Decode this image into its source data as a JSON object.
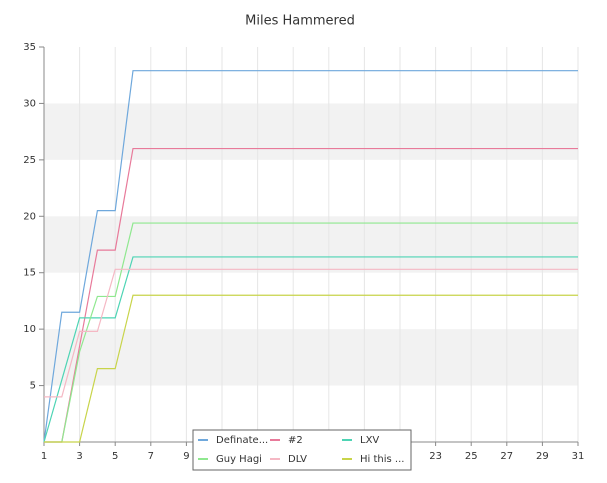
{
  "chart_data": {
    "type": "line",
    "title": "Miles Hammered",
    "x": [
      1,
      2,
      3,
      4,
      5,
      6,
      7,
      8,
      9,
      10,
      11,
      12,
      13,
      14,
      15,
      16,
      17,
      18,
      19,
      20,
      21,
      22,
      23,
      24,
      25,
      26,
      27,
      28,
      29,
      30,
      31
    ],
    "series": [
      {
        "name": "Definate...",
        "color": "#6fa8dc",
        "values": [
          0,
          11.5,
          11.5,
          20.5,
          20.5,
          32.9,
          32.9,
          32.9,
          32.9,
          32.9,
          32.9,
          32.9,
          32.9,
          32.9,
          32.9,
          32.9,
          32.9,
          32.9,
          32.9,
          32.9,
          32.9,
          32.9,
          32.9,
          32.9,
          32.9,
          32.9,
          32.9,
          32.9,
          32.9,
          32.9,
          32.9
        ]
      },
      {
        "name": "#2",
        "color": "#e87a9a",
        "values": [
          0,
          0,
          8.5,
          17,
          17,
          26,
          26,
          26,
          26,
          26,
          26,
          26,
          26,
          26,
          26,
          26,
          26,
          26,
          26,
          26,
          26,
          26,
          26,
          26,
          26,
          26,
          26,
          26,
          26,
          26,
          26
        ]
      },
      {
        "name": "LXV",
        "color": "#4dd4b4",
        "values": [
          0,
          5.5,
          11,
          11,
          11,
          16.4,
          16.4,
          16.4,
          16.4,
          16.4,
          16.4,
          16.4,
          16.4,
          16.4,
          16.4,
          16.4,
          16.4,
          16.4,
          16.4,
          16.4,
          16.4,
          16.4,
          16.4,
          16.4,
          16.4,
          16.4,
          16.4,
          16.4,
          16.4,
          16.4,
          16.4
        ]
      },
      {
        "name": "Guy Hagi",
        "color": "#8fe88f",
        "values": [
          0,
          0,
          8,
          12.9,
          12.9,
          19.4,
          19.4,
          19.4,
          19.4,
          19.4,
          19.4,
          19.4,
          19.4,
          19.4,
          19.4,
          19.4,
          19.4,
          19.4,
          19.4,
          19.4,
          19.4,
          19.4,
          19.4,
          19.4,
          19.4,
          19.4,
          19.4,
          19.4,
          19.4,
          19.4,
          19.4
        ]
      },
      {
        "name": "DLV",
        "color": "#f5b8c4",
        "values": [
          4,
          4,
          9.8,
          9.8,
          15.3,
          15.3,
          15.3,
          15.3,
          15.3,
          15.3,
          15.3,
          15.3,
          15.3,
          15.3,
          15.3,
          15.3,
          15.3,
          15.3,
          15.3,
          15.3,
          15.3,
          15.3,
          15.3,
          15.3,
          15.3,
          15.3,
          15.3,
          15.3,
          15.3,
          15.3,
          15.3
        ]
      },
      {
        "name": "Hi this ...",
        "color": "#c8d44a",
        "values": [
          0,
          0,
          0,
          6.5,
          6.5,
          13,
          13,
          13,
          13,
          13,
          13,
          13,
          13,
          13,
          13,
          13,
          13,
          13,
          13,
          13,
          13,
          13,
          13,
          13,
          13,
          13,
          13,
          13,
          13,
          13,
          13
        ]
      }
    ],
    "xlim": [
      1,
      31
    ],
    "xticks": [
      1,
      3,
      5,
      7,
      9,
      11,
      13,
      15,
      17,
      19,
      21,
      23,
      25,
      27,
      29,
      31
    ],
    "ylim": [
      0,
      35
    ],
    "yticks": [
      5,
      10,
      15,
      20,
      25,
      30,
      35
    ],
    "grid": true
  }
}
